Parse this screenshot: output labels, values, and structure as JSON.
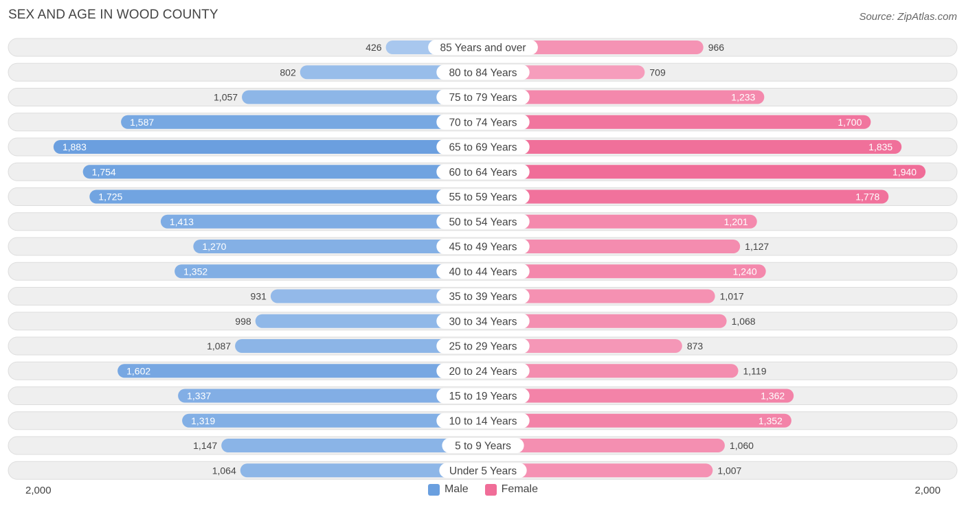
{
  "title": "SEX AND AGE IN WOOD COUNTY",
  "source": "Source: ZipAtlas.com",
  "axis": {
    "left_label": "2,000",
    "right_label": "2,000"
  },
  "legend": {
    "male_label": "Male",
    "female_label": "Female"
  },
  "colors": {
    "male_light": "#a9c8ee",
    "male_dark": "#6a9fdf",
    "female_light": "#f8aac5",
    "female_dark": "#f06d98",
    "row_bg": "#efefef",
    "row_border": "#dddddd"
  },
  "chart_data": {
    "type": "bar",
    "orientation": "horizontal-butterfly",
    "title": "SEX AND AGE IN WOOD COUNTY",
    "xlim": [
      0,
      2000
    ],
    "categories": [
      "85 Years and over",
      "80 to 84 Years",
      "75 to 79 Years",
      "70 to 74 Years",
      "65 to 69 Years",
      "60 to 64 Years",
      "55 to 59 Years",
      "50 to 54 Years",
      "45 to 49 Years",
      "40 to 44 Years",
      "35 to 39 Years",
      "30 to 34 Years",
      "25 to 29 Years",
      "20 to 24 Years",
      "15 to 19 Years",
      "10 to 14 Years",
      "5 to 9 Years",
      "Under 5 Years"
    ],
    "series": [
      {
        "name": "Male",
        "values": [
          426,
          802,
          1057,
          1587,
          1883,
          1754,
          1725,
          1413,
          1270,
          1352,
          931,
          998,
          1087,
          1602,
          1337,
          1319,
          1147,
          1064
        ],
        "labels": [
          "426",
          "802",
          "1,057",
          "1,587",
          "1,883",
          "1,754",
          "1,725",
          "1,413",
          "1,270",
          "1,352",
          "931",
          "998",
          "1,087",
          "1,602",
          "1,337",
          "1,319",
          "1,147",
          "1,064"
        ]
      },
      {
        "name": "Female",
        "values": [
          966,
          709,
          1233,
          1700,
          1835,
          1940,
          1778,
          1201,
          1127,
          1240,
          1017,
          1068,
          873,
          1119,
          1362,
          1352,
          1060,
          1007
        ],
        "labels": [
          "966",
          "709",
          "1,233",
          "1,700",
          "1,835",
          "1,940",
          "1,778",
          "1,201",
          "1,127",
          "1,240",
          "1,017",
          "1,068",
          "873",
          "1,119",
          "1,362",
          "1,352",
          "1,060",
          "1,007"
        ]
      }
    ]
  }
}
